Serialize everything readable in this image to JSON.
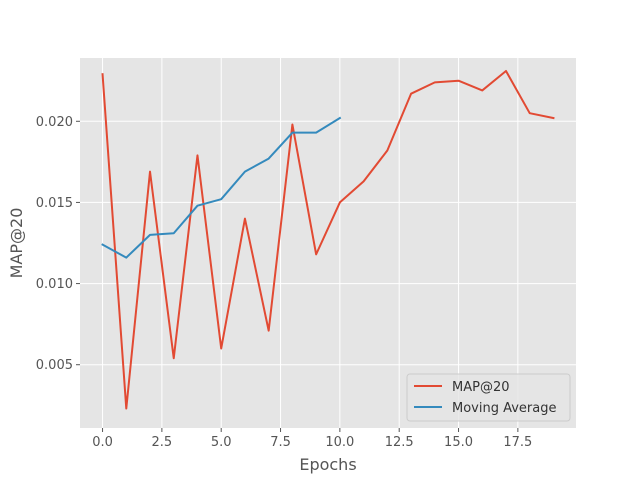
{
  "chart_data": {
    "type": "line",
    "title": "",
    "xlabel": "Epochs",
    "ylabel": "MAP@20",
    "xlim": [
      -0.95,
      19.95
    ],
    "ylim": [
      0.0011,
      0.0239
    ],
    "xticks": [
      0,
      2.5,
      5,
      7.5,
      10,
      12.5,
      15,
      17.5
    ],
    "xtick_labels": [
      "0.0",
      "2.5",
      "5.0",
      "7.5",
      "10.0",
      "12.5",
      "15.0",
      "17.5"
    ],
    "yticks": [
      0.005,
      0.01,
      0.015,
      0.02
    ],
    "ytick_labels": [
      "0.005",
      "0.010",
      "0.015",
      "0.020"
    ],
    "grid": true,
    "legend_position": "bottom-right",
    "series": [
      {
        "name": "MAP@20",
        "color": "#E24A33",
        "x": [
          0,
          1,
          2,
          3,
          4,
          5,
          6,
          7,
          8,
          9,
          10,
          11,
          12,
          13,
          14,
          15,
          16,
          17,
          18,
          19
        ],
        "y": [
          0.0229,
          0.0023,
          0.0169,
          0.0054,
          0.0179,
          0.006,
          0.014,
          0.0071,
          0.0198,
          0.0118,
          0.015,
          0.0163,
          0.0182,
          0.0217,
          0.0224,
          0.0225,
          0.0219,
          0.0231,
          0.0205,
          0.0202
        ]
      },
      {
        "name": "Moving Average",
        "color": "#348ABD",
        "x": [
          0,
          1,
          2,
          3,
          4,
          5,
          6,
          7,
          8,
          9,
          10
        ],
        "y": [
          0.0124,
          0.0116,
          0.013,
          0.0131,
          0.0148,
          0.0152,
          0.0169,
          0.0177,
          0.0193,
          0.0193,
          0.0202
        ]
      }
    ]
  }
}
